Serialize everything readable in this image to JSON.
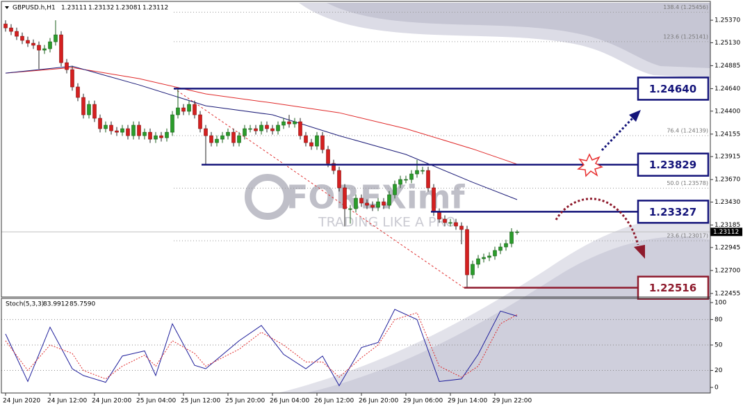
{
  "chart_data": [
    {
      "type": "candlestick",
      "title": "GBPUSD.h,H1",
      "categories": [
        "24 Jun 2020",
        null,
        null,
        null,
        null,
        null,
        null,
        null,
        "24 Jun 12:00",
        null,
        null,
        null,
        null,
        null,
        null,
        null,
        "24 Jun 20:00",
        null,
        null,
        null,
        null,
        null,
        null,
        null,
        "25 Jun 04:00",
        null,
        null,
        null,
        null,
        null,
        null,
        null,
        "25 Jun 12:00",
        null,
        null,
        null,
        null,
        null,
        null,
        null,
        "25 Jun 20:00",
        null,
        null,
        null,
        null,
        null,
        null,
        null,
        "26 Jun 04:00",
        null,
        null,
        null,
        null,
        null,
        null,
        null,
        "26 Jun 12:00",
        null,
        null,
        null,
        null,
        null,
        null,
        null,
        "26 Jun 20:00",
        null,
        null,
        null,
        null,
        null,
        null,
        null,
        "29 Jun 06:00",
        null,
        null,
        null,
        null,
        null,
        null,
        null,
        "29 Jun 14:00",
        null,
        null,
        null,
        null,
        null,
        null,
        null,
        "29 Jun 22:00",
        null,
        null,
        null,
        null
      ],
      "open": [
        1.2533,
        1.25288,
        1.25251,
        1.25199,
        1.25155,
        1.25125,
        1.25103,
        1.25051,
        1.25066,
        1.2514,
        1.25214,
        1.24917,
        1.24843,
        1.24658,
        1.24546,
        1.24361,
        1.24472,
        1.24324,
        1.24213,
        1.2425,
        1.2419,
        1.24175,
        1.24213,
        1.24138,
        1.2425,
        1.24138,
        1.24175,
        1.24101,
        1.24138,
        1.24116,
        1.24175,
        1.24361,
        1.24435,
        1.24398,
        1.24472,
        1.24361,
        1.24213,
        1.24138,
        1.24064,
        1.24101,
        1.24138,
        1.24175,
        1.24064,
        1.24138,
        1.24213,
        1.24213,
        1.2419,
        1.2425,
        1.24213,
        1.2419,
        1.2425,
        1.24287,
        1.24264,
        1.24287,
        1.24138,
        1.24064,
        1.24027,
        1.24138,
        1.2399,
        1.23842,
        1.23767,
        1.23582,
        1.23359,
        1.23359,
        1.23471,
        1.23419,
        1.23396,
        1.23374,
        1.23433,
        1.23396,
        1.23508,
        1.23619,
        1.23671,
        1.23671,
        1.2373,
        1.23767,
        1.23767,
        1.23582,
        1.23322,
        1.23248,
        1.23211,
        1.23211,
        1.23174,
        1.23137,
        1.22654,
        1.22766,
        1.22825,
        1.2284,
        1.22855,
        1.22914,
        1.22951,
        1.22988,
        1.23111
      ],
      "high": [
        1.2537,
        1.25328,
        1.25291,
        1.25239,
        1.25195,
        1.25165,
        1.25143,
        1.25106,
        1.2518,
        1.2537,
        1.25254,
        1.24957,
        1.24883,
        1.24698,
        1.24586,
        1.24512,
        1.24512,
        1.24364,
        1.2429,
        1.2429,
        1.2423,
        1.24253,
        1.24253,
        1.2429,
        1.2429,
        1.24215,
        1.24215,
        1.24178,
        1.24178,
        1.24215,
        1.24401,
        1.2464,
        1.24475,
        1.24512,
        1.24512,
        1.24401,
        1.24253,
        1.24178,
        1.24141,
        1.24178,
        1.24215,
        1.24215,
        1.24178,
        1.24253,
        1.24253,
        1.24253,
        1.2429,
        1.2429,
        1.24253,
        1.2429,
        1.24327,
        1.2436,
        1.24327,
        1.24327,
        1.24178,
        1.24104,
        1.24178,
        1.24178,
        1.2403,
        1.23882,
        1.23807,
        1.23622,
        1.23399,
        1.23511,
        1.23511,
        1.23459,
        1.23436,
        1.23473,
        1.23473,
        1.23548,
        1.23659,
        1.23711,
        1.23711,
        1.2377,
        1.2388,
        1.23807,
        1.23807,
        1.23622,
        1.23362,
        1.23288,
        1.23251,
        1.23251,
        1.23214,
        1.23177,
        1.22806,
        1.22865,
        1.2288,
        1.22895,
        1.22954,
        1.22991,
        1.23028,
        1.23151,
        1.23132
      ],
      "low": [
        1.25248,
        1.25211,
        1.25159,
        1.25115,
        1.25085,
        1.25063,
        1.2485,
        1.25011,
        1.25026,
        1.251,
        1.24877,
        1.24803,
        1.24618,
        1.24506,
        1.24321,
        1.24321,
        1.24284,
        1.24173,
        1.24173,
        1.2415,
        1.24135,
        1.24135,
        1.24098,
        1.24098,
        1.24098,
        1.24098,
        1.24061,
        1.24061,
        1.24076,
        1.24076,
        1.24135,
        1.24321,
        1.24358,
        1.24358,
        1.24321,
        1.24173,
        1.23829,
        1.24024,
        1.24024,
        1.24061,
        1.24098,
        1.24024,
        1.24024,
        1.24098,
        1.24173,
        1.2415,
        1.2415,
        1.24173,
        1.2415,
        1.2415,
        1.2421,
        1.24224,
        1.24224,
        1.24098,
        1.24024,
        1.23987,
        1.23987,
        1.2395,
        1.23802,
        1.23727,
        1.23542,
        1.2317,
        1.232,
        1.23319,
        1.23379,
        1.23356,
        1.23334,
        1.23334,
        1.23356,
        1.23356,
        1.23468,
        1.23579,
        1.23631,
        1.23631,
        1.2369,
        1.23727,
        1.23542,
        1.23282,
        1.23208,
        1.23171,
        1.23171,
        1.23134,
        1.2298,
        1.22516,
        1.22614,
        1.22726,
        1.22785,
        1.228,
        1.22815,
        1.22874,
        1.22911,
        1.22948,
        1.23081
      ],
      "close": [
        1.25288,
        1.25251,
        1.25199,
        1.25155,
        1.25125,
        1.25103,
        1.25051,
        1.25066,
        1.2514,
        1.25214,
        1.24917,
        1.24843,
        1.24658,
        1.24546,
        1.24361,
        1.24472,
        1.24324,
        1.24213,
        1.2425,
        1.2419,
        1.24175,
        1.24213,
        1.24138,
        1.2425,
        1.24138,
        1.24175,
        1.24101,
        1.24138,
        1.24116,
        1.24175,
        1.24361,
        1.24435,
        1.24398,
        1.24472,
        1.24361,
        1.24213,
        1.24138,
        1.24064,
        1.24101,
        1.24138,
        1.24175,
        1.24064,
        1.24138,
        1.24213,
        1.24213,
        1.2419,
        1.2425,
        1.24213,
        1.2419,
        1.2425,
        1.24287,
        1.24264,
        1.24287,
        1.24138,
        1.24064,
        1.24027,
        1.24138,
        1.2399,
        1.23842,
        1.23767,
        1.23582,
        1.23359,
        1.23359,
        1.23471,
        1.23419,
        1.23396,
        1.23374,
        1.23433,
        1.23396,
        1.23508,
        1.23619,
        1.23671,
        1.23671,
        1.2373,
        1.23767,
        1.23767,
        1.23582,
        1.23322,
        1.23248,
        1.23211,
        1.23211,
        1.23174,
        1.23137,
        1.22654,
        1.22766,
        1.22825,
        1.2284,
        1.22855,
        1.22914,
        1.22951,
        1.22988,
        1.23111,
        1.23112
      ],
      "up_color": "#2a9d2a",
      "down_color": "#d42020",
      "ylim": [
        1.22417,
        1.25556
      ],
      "yticks": [
        {
          "value": 1.2537,
          "label": "1.25370"
        },
        {
          "value": 1.2513,
          "label": "1.25130"
        },
        1.24885,
        {
          "value": 1.2464,
          "label": "1.24640"
        },
        {
          "value": 1.244,
          "label": "1.24400"
        },
        1.24155,
        1.23915,
        {
          "value": 1.2367,
          "label": "1.23670"
        },
        {
          "value": 1.2343,
          "label": "1.23430"
        },
        1.23185,
        1.22945,
        {
          "value": 1.227,
          "label": "1.22700"
        },
        1.22455
      ],
      "series": [
        {
          "color": "#e02828",
          "x": [
            0,
            12,
            24,
            36,
            48,
            60,
            72,
            84,
            92
          ],
          "values": [
            1.24806,
            1.24865,
            1.24747,
            1.24584,
            1.24487,
            1.24383,
            1.24213,
            1.23997,
            1.23834
          ]
        },
        {
          "color": "#1c1c78",
          "x": [
            0,
            12,
            24,
            36,
            48,
            60,
            72,
            84,
            92
          ],
          "values": [
            1.24806,
            1.2488,
            1.2468,
            1.24457,
            1.24361,
            1.24138,
            1.23938,
            1.23641,
            1.23456
          ]
        }
      ],
      "levels": [
        {
          "value": 1.2464,
          "label": "1.24640",
          "color": "#14147a"
        },
        {
          "value": 1.23829,
          "color": "#14147a"
        },
        {
          "value": 1.23327,
          "color": "#14147a"
        },
        {
          "value": 1.22516,
          "color": "#8e1a2c"
        }
      ],
      "fib_levels": [
        {
          "value": 1.25456,
          "label": "138.4 (1.25456)"
        },
        {
          "value": 1.25141,
          "label": "123.6 (1.25141)"
        },
        {
          "value": 1.24139,
          "label": "76.4 (1.24139)"
        },
        {
          "value": 1.23578,
          "label": "50.0 (1.23578)"
        },
        {
          "value": 1.23017,
          "label": "23.6 (1.23017)"
        }
      ],
      "watermark": "FOREXimf",
      "watermark_tagline": "TRADING LIKE A PRO"
    },
    {
      "type": "line",
      "title": "Stoch(5,3,3)",
      "ylim": [
        -6.6,
        104.1
      ],
      "yticks": [
        100,
        80,
        50,
        20,
        0
      ],
      "series": [
        {
          "color": "#1c1c9a",
          "x": [
            0,
            4,
            8,
            12,
            14,
            18,
            21,
            25,
            27,
            30,
            34,
            36,
            42,
            46,
            50,
            54,
            57,
            60,
            64,
            67,
            70,
            74,
            78,
            82,
            85,
            89,
            92
          ],
          "values": [
            63,
            7,
            71,
            22,
            14,
            6,
            37,
            43,
            14,
            75,
            26,
            22,
            55,
            73,
            39,
            22,
            37,
            2,
            47,
            53,
            92,
            80,
            7,
            10,
            39,
            90,
            83.9912
          ]
        },
        {
          "color": "#e02828",
          "dash": true,
          "x": [
            0,
            4,
            8,
            12,
            14,
            18,
            21,
            25,
            27,
            30,
            34,
            36,
            42,
            46,
            50,
            54,
            57,
            60,
            64,
            67,
            70,
            74,
            78,
            82,
            85,
            89,
            92
          ],
          "values": [
            55,
            20,
            50,
            40,
            20,
            10,
            25,
            38,
            25,
            55,
            40,
            25,
            45,
            65,
            50,
            30,
            30,
            12,
            35,
            50,
            80,
            88,
            25,
            12,
            25,
            75,
            85.759
          ],
          "value_labels": [
            null,
            null,
            null,
            null,
            null,
            null,
            null,
            null,
            null,
            null,
            null,
            null,
            null,
            null,
            null,
            null,
            null,
            null,
            null,
            null,
            null,
            null,
            null,
            null,
            null,
            null,
            "85.7590"
          ]
        }
      ]
    }
  ]
}
